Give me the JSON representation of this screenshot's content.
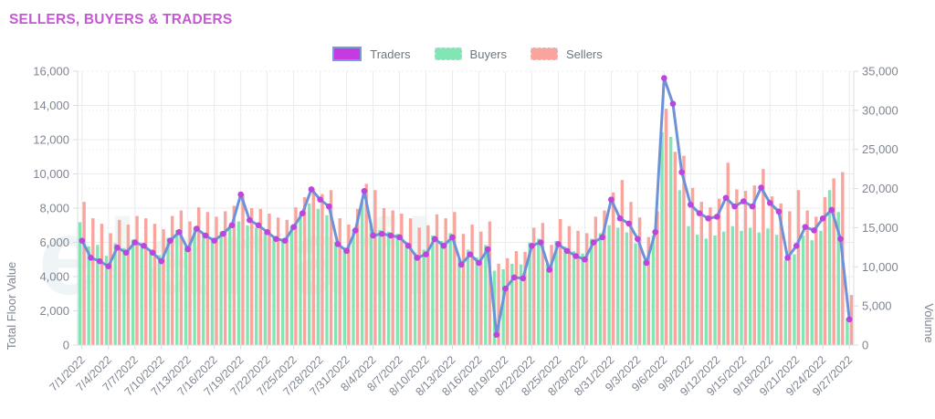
{
  "title": "SELLERS, BUYERS & TRADERS",
  "watermark_text": "elanafl",
  "legend": [
    {
      "label": "Traders",
      "color": "#c53be0",
      "border": "#7b9bd8"
    },
    {
      "label": "Buyers",
      "color": "#82e6b4"
    },
    {
      "label": "Sellers",
      "color": "#f9a49d"
    }
  ],
  "colors": {
    "title": "#c45ad1",
    "axis_text": "#7f8691",
    "grid": "#e9ebee",
    "grid_dotted": "#e4e7ec",
    "axis_line": "#d9dde3",
    "traders_line": "#6d92d8",
    "traders_marker": "#bb45dd",
    "buyers_bar": "#82e6b4",
    "sellers_bar": "#f9a49d"
  },
  "chart_data": {
    "type": "mixed",
    "x": [
      "7/1/2022",
      "7/2/2022",
      "7/3/2022",
      "7/4/2022",
      "7/5/2022",
      "7/6/2022",
      "7/7/2022",
      "7/8/2022",
      "7/9/2022",
      "7/10/2022",
      "7/11/2022",
      "7/12/2022",
      "7/13/2022",
      "7/14/2022",
      "7/15/2022",
      "7/16/2022",
      "7/17/2022",
      "7/18/2022",
      "7/19/2022",
      "7/20/2022",
      "7/21/2022",
      "7/22/2022",
      "7/23/2022",
      "7/24/2022",
      "7/25/2022",
      "7/26/2022",
      "7/27/2022",
      "7/28/2022",
      "7/29/2022",
      "7/30/2022",
      "7/31/2022",
      "8/1/2022",
      "8/2/2022",
      "8/4/2022",
      "8/5/2022",
      "8/6/2022",
      "8/7/2022",
      "8/8/2022",
      "8/9/2022",
      "8/10/2022",
      "8/11/2022",
      "8/12/2022",
      "8/13/2022",
      "8/14/2022",
      "8/15/2022",
      "8/16/2022",
      "8/17/2022",
      "8/18/2022",
      "8/19/2022",
      "8/20/2022",
      "8/21/2022",
      "8/22/2022",
      "8/23/2022",
      "8/24/2022",
      "8/25/2022",
      "8/26/2022",
      "8/27/2022",
      "8/28/2022",
      "8/29/2022",
      "8/30/2022",
      "8/31/2022",
      "9/1/2022",
      "9/2/2022",
      "9/3/2022",
      "9/4/2022",
      "9/5/2022",
      "9/6/2022",
      "9/7/2022",
      "9/8/2022",
      "9/9/2022",
      "9/10/2022",
      "9/11/2022",
      "9/12/2022",
      "9/13/2022",
      "9/14/2022",
      "9/15/2022",
      "9/16/2022",
      "9/17/2022",
      "9/18/2022",
      "9/19/2022",
      "9/20/2022",
      "9/21/2022",
      "9/22/2022",
      "9/23/2022",
      "9/24/2022",
      "9/25/2022",
      "9/26/2022",
      "9/27/2022"
    ],
    "x_tick_every": 3,
    "series": [
      {
        "name": "Traders",
        "type": "line",
        "axis": "left",
        "values": [
          6100,
          5100,
          4900,
          4600,
          5700,
          5400,
          6000,
          5800,
          5400,
          4900,
          6100,
          6600,
          5600,
          6800,
          6400,
          6100,
          6500,
          7000,
          8800,
          7300,
          7000,
          6600,
          6200,
          6100,
          6900,
          7700,
          9100,
          8500,
          8100,
          5900,
          5500,
          6700,
          9000,
          6400,
          6500,
          6400,
          6300,
          5800,
          5100,
          5300,
          6200,
          5800,
          6300,
          4700,
          5300,
          4800,
          5600,
          600,
          3300,
          3950,
          3900,
          5800,
          6000,
          4400,
          5900,
          5500,
          5200,
          5000,
          6000,
          6300,
          8500,
          7400,
          7100,
          6200,
          4800,
          6600,
          15600,
          14100,
          10100,
          8200,
          7700,
          7400,
          7500,
          8600,
          8100,
          8400,
          8100,
          9200,
          8300,
          7800,
          5100,
          5800,
          6900,
          6700,
          7400,
          7900,
          6200,
          1500
        ]
      },
      {
        "name": "Buyers",
        "type": "bar",
        "axis": "right",
        "values": [
          15700,
          12600,
          12800,
          11400,
          13000,
          12400,
          13500,
          12900,
          12200,
          11500,
          13700,
          14700,
          12600,
          15100,
          14300,
          13700,
          14500,
          15300,
          15800,
          15300,
          15000,
          14400,
          13800,
          13600,
          15200,
          16800,
          18100,
          17400,
          16600,
          13200,
          12500,
          14800,
          18300,
          15500,
          14700,
          14500,
          14200,
          13200,
          11800,
          12200,
          14000,
          13300,
          14300,
          11000,
          12200,
          11200,
          12800,
          9500,
          9700,
          10400,
          10300,
          13100,
          13600,
          10400,
          13300,
          12600,
          12000,
          11700,
          13600,
          14300,
          15300,
          15000,
          14400,
          13000,
          10800,
          14000,
          27200,
          26600,
          19800,
          15200,
          14100,
          13600,
          14000,
          14500,
          15200,
          14600,
          15000,
          14400,
          14900,
          14100,
          10900,
          11600,
          14000,
          13400,
          14600,
          19800,
          17000,
          3400
        ]
      },
      {
        "name": "Sellers",
        "type": "bar",
        "axis": "right",
        "values": [
          18300,
          16200,
          15500,
          14300,
          16000,
          15400,
          16500,
          16200,
          15500,
          14800,
          16500,
          17200,
          15800,
          17600,
          17000,
          16400,
          17100,
          17800,
          19300,
          17500,
          17400,
          16800,
          16300,
          16000,
          17600,
          18900,
          20000,
          19300,
          19800,
          16200,
          15400,
          17400,
          20600,
          19800,
          17500,
          17200,
          16800,
          16200,
          15000,
          15300,
          16700,
          16200,
          17000,
          14200,
          15400,
          14500,
          15800,
          10400,
          11100,
          12000,
          11900,
          15000,
          15600,
          12800,
          16100,
          15200,
          14600,
          14300,
          16400,
          17200,
          19500,
          21100,
          18300,
          16300,
          13800,
          17100,
          30200,
          24700,
          24200,
          20100,
          18300,
          17600,
          18700,
          23300,
          19900,
          19700,
          20400,
          22500,
          19000,
          18100,
          17100,
          19800,
          17200,
          16400,
          18900,
          21300,
          22100,
          6400
        ]
      }
    ],
    "left_axis": {
      "label": "Total Floor Value",
      "range": [
        0,
        16000
      ],
      "tick_step": 2000,
      "tick_labels": [
        "0",
        "2,000",
        "4,000",
        "6,000",
        "8,000",
        "10,000",
        "12,000",
        "14,000",
        "16,000"
      ]
    },
    "right_axis": {
      "label": "Volume",
      "range": [
        0,
        35000
      ],
      "tick_step": 5000,
      "tick_labels": [
        "0",
        "5,000",
        "10,000",
        "15,000",
        "20,000",
        "25,000",
        "30,000",
        "35,000"
      ]
    },
    "grid": true,
    "legend_position": "top-center"
  }
}
